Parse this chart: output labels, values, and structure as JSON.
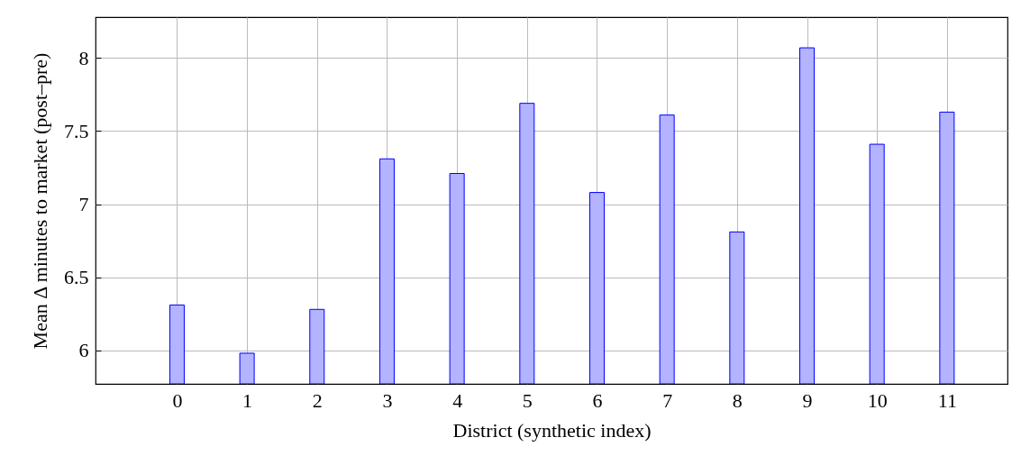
{
  "chart_data": {
    "type": "bar",
    "xlabel": "District (synthetic index)",
    "ylabel": "Mean Δ minutes to market (post–pre)",
    "x": [
      0,
      1,
      2,
      3,
      4,
      5,
      6,
      7,
      8,
      9,
      10,
      11
    ],
    "values": [
      6.31,
      5.98,
      6.28,
      7.31,
      7.21,
      7.69,
      7.08,
      7.61,
      6.81,
      8.07,
      7.41,
      7.63
    ],
    "color": "#b3b3ff",
    "xlim": [
      -1.1,
      11.8
    ],
    "xticks": [
      0,
      1,
      2,
      3,
      4,
      5,
      6,
      7,
      8,
      9,
      10,
      11
    ],
    "ylim": [
      5.77,
      8.28
    ],
    "yticks": [
      6,
      6.5,
      7,
      7.5,
      8
    ],
    "grid": true
  }
}
